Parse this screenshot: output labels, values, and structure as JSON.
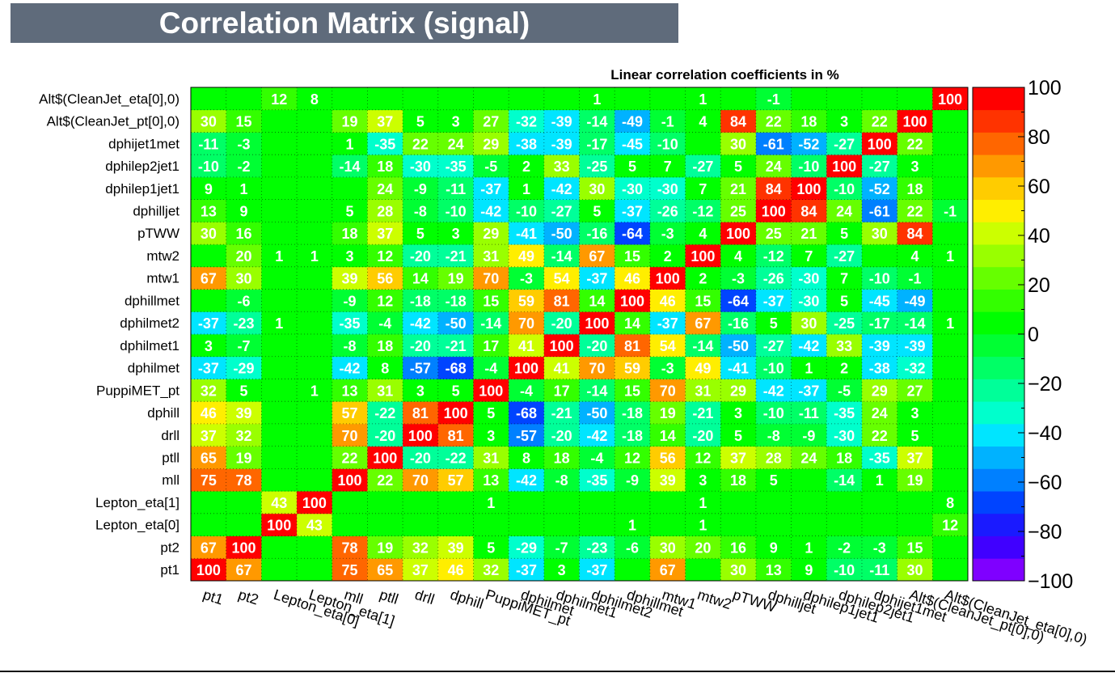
{
  "title": "Correlation Matrix (signal)",
  "chart_data": {
    "type": "heatmap",
    "subtitle": "Linear correlation coefficients in %",
    "variables": [
      "pt1",
      "pt2",
      "Lepton_eta[0]",
      "Lepton_eta[1]",
      "mll",
      "ptll",
      "drll",
      "dphill",
      "PuppiMET_pt",
      "dphilmet",
      "dphilmet1",
      "dphilmet2",
      "dphillmet",
      "mtw1",
      "mtw2",
      "pTWW",
      "dphilljet",
      "dphilep1jet1",
      "dphilep2jet1",
      "dphijet1met",
      "Alt$(CleanJet_pt[0],0)",
      "Alt$(CleanJet_eta[0],0)"
    ],
    "values": [
      [
        100,
        67,
        null,
        null,
        75,
        65,
        37,
        46,
        32,
        -37,
        3,
        -37,
        null,
        67,
        null,
        30,
        13,
        9,
        -10,
        -11,
        30,
        null
      ],
      [
        67,
        100,
        null,
        null,
        78,
        19,
        32,
        39,
        5,
        -29,
        -7,
        -23,
        -6,
        30,
        20,
        16,
        9,
        1,
        -2,
        -3,
        15,
        null
      ],
      [
        null,
        null,
        100,
        43,
        null,
        null,
        null,
        null,
        null,
        null,
        null,
        null,
        1,
        null,
        1,
        null,
        null,
        null,
        null,
        null,
        null,
        12
      ],
      [
        null,
        null,
        43,
        100,
        null,
        null,
        null,
        null,
        1,
        null,
        null,
        null,
        null,
        null,
        1,
        null,
        null,
        null,
        null,
        null,
        null,
        8
      ],
      [
        75,
        78,
        null,
        null,
        100,
        22,
        70,
        57,
        13,
        -42,
        -8,
        -35,
        -9,
        39,
        3,
        18,
        5,
        null,
        -14,
        1,
        19,
        null
      ],
      [
        65,
        19,
        null,
        null,
        22,
        100,
        -20,
        -22,
        31,
        8,
        18,
        -4,
        12,
        56,
        12,
        37,
        28,
        24,
        18,
        -35,
        37,
        null
      ],
      [
        37,
        32,
        null,
        null,
        70,
        -20,
        100,
        81,
        3,
        -57,
        -20,
        -42,
        -18,
        14,
        -20,
        5,
        -8,
        -9,
        -30,
        22,
        5,
        null
      ],
      [
        46,
        39,
        null,
        null,
        57,
        -22,
        81,
        100,
        5,
        -68,
        -21,
        -50,
        -18,
        19,
        -21,
        3,
        -10,
        -11,
        -35,
        24,
        3,
        null
      ],
      [
        32,
        5,
        null,
        1,
        13,
        31,
        3,
        5,
        100,
        -4,
        17,
        -14,
        15,
        70,
        31,
        29,
        -42,
        -37,
        -5,
        29,
        27,
        null
      ],
      [
        -37,
        -29,
        null,
        null,
        -42,
        8,
        -57,
        -68,
        -4,
        100,
        41,
        70,
        59,
        -3,
        49,
        -41,
        -10,
        1,
        2,
        -38,
        -32,
        null
      ],
      [
        3,
        -7,
        null,
        null,
        -8,
        18,
        -20,
        -21,
        17,
        41,
        100,
        -20,
        81,
        54,
        -14,
        -50,
        -27,
        -42,
        33,
        -39,
        -39,
        null
      ],
      [
        -37,
        -23,
        1,
        null,
        -35,
        -4,
        -42,
        -50,
        -14,
        70,
        -20,
        100,
        14,
        -37,
        67,
        -16,
        5,
        30,
        -25,
        -17,
        -14,
        1
      ],
      [
        null,
        -6,
        null,
        null,
        -9,
        12,
        -18,
        -18,
        15,
        59,
        81,
        14,
        100,
        46,
        15,
        -64,
        -37,
        -30,
        5,
        -45,
        -49,
        null
      ],
      [
        67,
        30,
        null,
        null,
        39,
        56,
        14,
        19,
        70,
        -3,
        54,
        -37,
        46,
        100,
        2,
        -3,
        -26,
        -30,
        7,
        -10,
        -1,
        null
      ],
      [
        null,
        20,
        1,
        1,
        3,
        12,
        -20,
        -21,
        31,
        49,
        -14,
        67,
        15,
        2,
        100,
        4,
        -12,
        7,
        -27,
        null,
        4,
        1
      ],
      [
        30,
        16,
        null,
        null,
        18,
        37,
        5,
        3,
        29,
        -41,
        -50,
        -16,
        -64,
        -3,
        4,
        100,
        25,
        21,
        5,
        30,
        84,
        null
      ],
      [
        13,
        9,
        null,
        null,
        5,
        28,
        -8,
        -10,
        -42,
        -10,
        -27,
        5,
        -37,
        -26,
        -12,
        25,
        100,
        84,
        24,
        -61,
        22,
        -1
      ],
      [
        9,
        1,
        null,
        null,
        null,
        24,
        -9,
        -11,
        -37,
        1,
        -42,
        30,
        -30,
        -30,
        7,
        21,
        84,
        100,
        -10,
        -52,
        18,
        null
      ],
      [
        -10,
        -2,
        null,
        null,
        -14,
        18,
        -30,
        -35,
        -5,
        2,
        33,
        -25,
        5,
        7,
        -27,
        5,
        24,
        -10,
        100,
        -27,
        3,
        null
      ],
      [
        -11,
        -3,
        null,
        null,
        1,
        -35,
        22,
        24,
        29,
        -38,
        -39,
        -17,
        -45,
        -10,
        null,
        30,
        -61,
        -52,
        -27,
        100,
        22,
        null
      ],
      [
        30,
        15,
        null,
        null,
        19,
        37,
        5,
        3,
        27,
        -32,
        -39,
        -14,
        -49,
        -1,
        4,
        84,
        22,
        18,
        3,
        22,
        100,
        null
      ],
      [
        null,
        null,
        12,
        8,
        null,
        null,
        null,
        null,
        null,
        null,
        null,
        1,
        null,
        null,
        1,
        null,
        -1,
        null,
        null,
        null,
        null,
        100
      ]
    ],
    "zlim": [
      -100,
      100
    ],
    "color_ticks": [
      "100",
      "80",
      "60",
      "40",
      "20",
      "0",
      "−20",
      "−40",
      "−60",
      "−80",
      "−100"
    ],
    "palette": [
      "#7f00ff",
      "#4000ff",
      "#1a1aff",
      "#0044ff",
      "#0080ff",
      "#00b2ff",
      "#00e5ff",
      "#00ffcc",
      "#00ff99",
      "#00ff66",
      "#00ff33",
      "#00ff00",
      "#33ff00",
      "#66ff00",
      "#99ff00",
      "#ccff00",
      "#ffee00",
      "#ffcc00",
      "#ff9900",
      "#ff6600",
      "#ff3300",
      "#ff0000"
    ],
    "legend": "right"
  }
}
